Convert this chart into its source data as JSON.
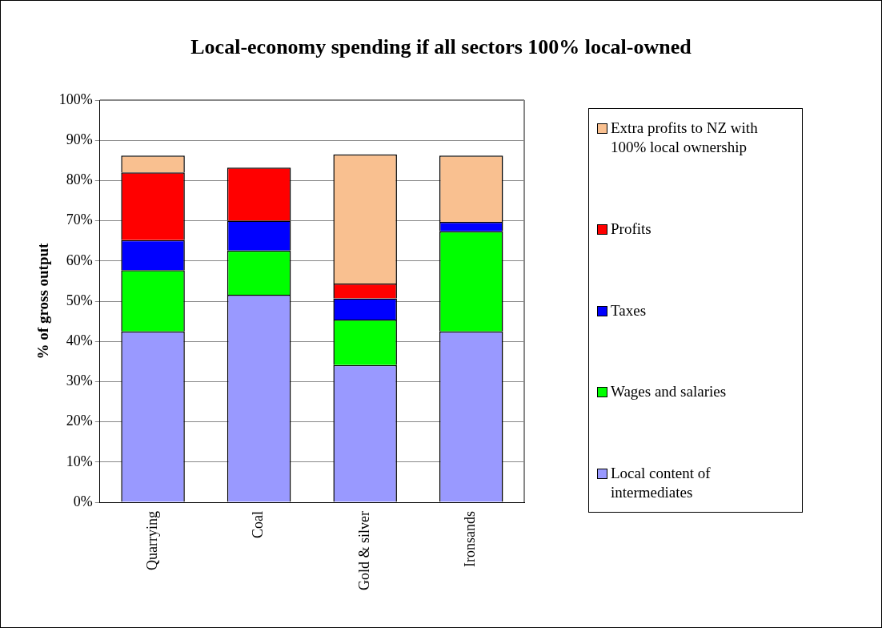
{
  "chart_data": {
    "type": "bar",
    "title": "Local-economy spending if all sectors 100% local-owned",
    "ylabel": "% of gross output",
    "categories": [
      "Quarrying",
      "Coal",
      "Gold & silver",
      "Ironsands"
    ],
    "stacked": true,
    "series": [
      {
        "name": "Local content of intermediates",
        "color": "#9999ff",
        "values": [
          42.5,
          51.6,
          34.1,
          42.5
        ]
      },
      {
        "name": "Wages and salaries",
        "color": "#00ff00",
        "values": [
          15.2,
          11.0,
          11.3,
          24.9
        ]
      },
      {
        "name": "Taxes",
        "color": "#0000ff",
        "values": [
          7.5,
          7.4,
          5.3,
          2.3
        ]
      },
      {
        "name": "Profits",
        "color": "#ff0000",
        "values": [
          16.8,
          13.2,
          3.7,
          null
        ]
      },
      {
        "name": "Extra profits to NZ with 100% local ownership",
        "color": "#f9c090",
        "values": [
          4.2,
          null,
          32.1,
          16.5
        ]
      }
    ],
    "ylim": [
      0,
      100
    ],
    "yticks": [
      {
        "value": 0,
        "label": "0%"
      },
      {
        "value": 10,
        "label": "10%"
      },
      {
        "value": 20,
        "label": "20%"
      },
      {
        "value": 30,
        "label": "30%"
      },
      {
        "value": 40,
        "label": "40%"
      },
      {
        "value": 50,
        "label": "50%"
      },
      {
        "value": 60,
        "label": "60%"
      },
      {
        "value": 70,
        "label": "70%"
      },
      {
        "value": 80,
        "label": "80%"
      },
      {
        "value": 90,
        "label": "90%"
      },
      {
        "value": 100,
        "label": "100%"
      }
    ],
    "grid": "y",
    "legend": "right"
  }
}
